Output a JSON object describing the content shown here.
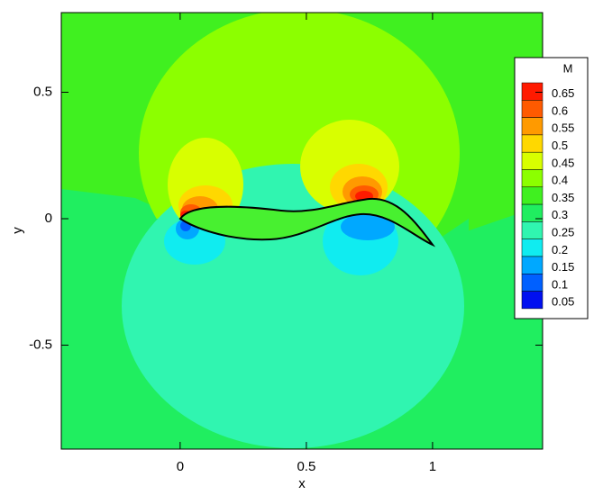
{
  "chart_data": {
    "type": "contour",
    "x_label": "x",
    "y_label": "y",
    "xlim": [
      -0.471,
      1.436
    ],
    "ylim": [
      -0.911,
      0.815
    ],
    "xticks": [
      0,
      0.5,
      1
    ],
    "yticks": [
      -0.5,
      0,
      0.5
    ],
    "colorbar": {
      "title": "M",
      "levels": [
        0.65,
        0.6,
        0.55,
        0.5,
        0.45,
        0.4,
        0.35,
        0.3,
        0.25,
        0.2,
        0.15,
        0.1,
        0.05
      ],
      "colors": [
        "#ff1a00",
        "#ff5a00",
        "#ff9a00",
        "#ffd800",
        "#d8ff00",
        "#8cff00",
        "#40f020",
        "#20ee60",
        "#30f5b0",
        "#10ecf0",
        "#00a8ff",
        "#0060ff",
        "#0010f0"
      ]
    }
  }
}
